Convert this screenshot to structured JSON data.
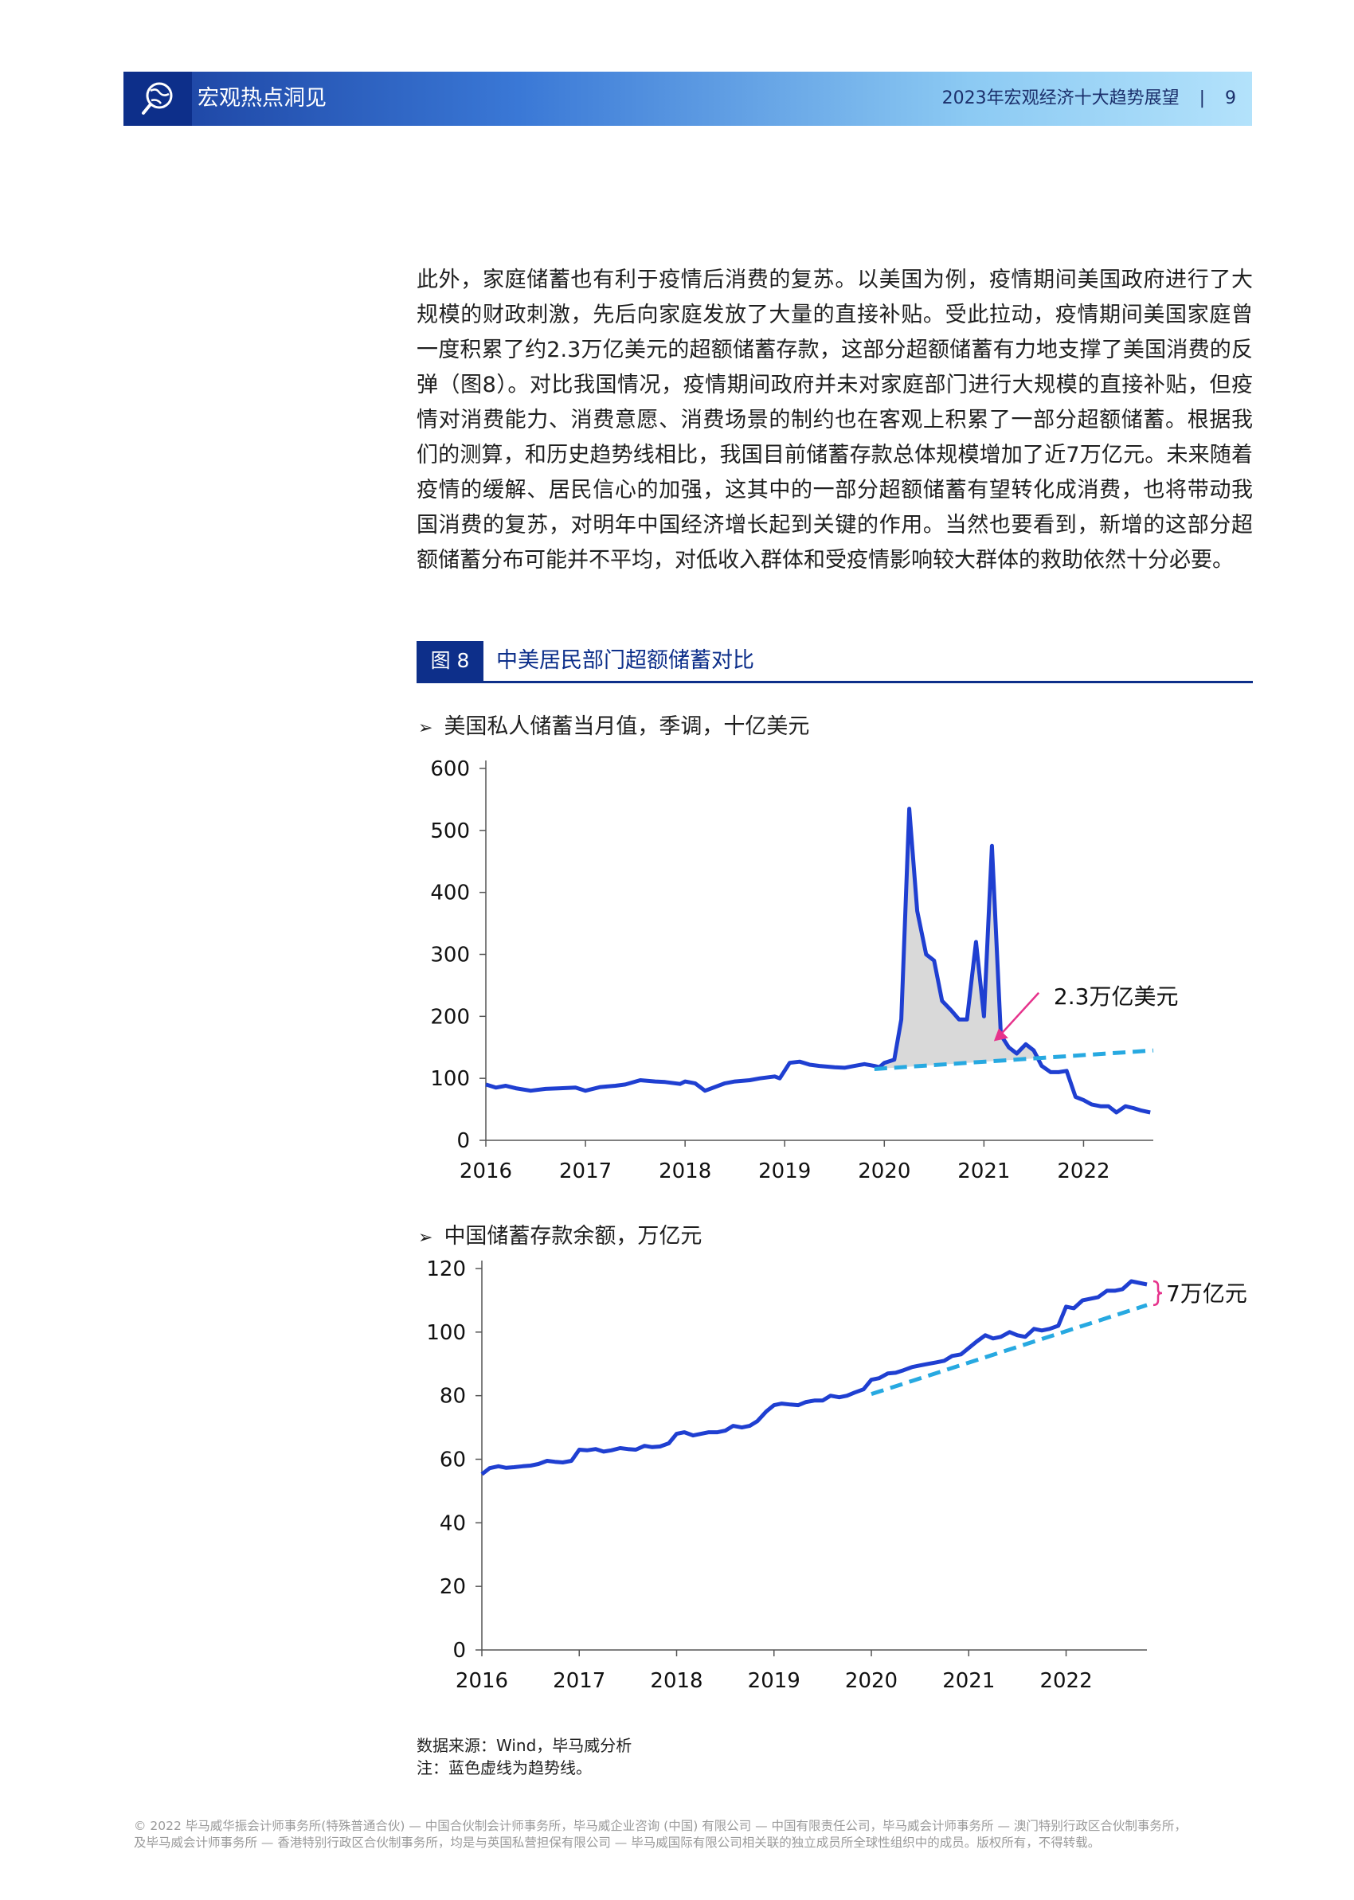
{
  "header": {
    "section_title": "宏观热点洞见",
    "report_title": "2023年宏观经济十大趋势展望",
    "separator": "|",
    "page_number": "9"
  },
  "body_paragraph": "此外，家庭储蓄也有利于疫情后消费的复苏。以美国为例，疫情期间美国政府进行了大规模的财政刺激，先后向家庭发放了大量的直接补贴。受此拉动，疫情期间美国家庭曾一度积累了约2.3万亿美元的超额储蓄存款，这部分超额储蓄有力地支撑了美国消费的反弹（图8）。对比我国情况，疫情期间政府并未对家庭部门进行大规模的直接补贴，但疫情对消费能力、消费意愿、消费场景的制约也在客观上积累了一部分超额储蓄。根据我们的测算，和历史趋势线相比，我国目前储蓄存款总体规模增加了近7万亿元。未来随着疫情的缓解、居民信心的加强，这其中的一部分超额储蓄有望转化成消费，也将带动我国消费的复苏，对明年中国经济增长起到关键的作用。当然也要看到，新增的这部分超额储蓄分布可能并不平均，对低收入群体和受疫情影响较大群体的救助依然十分必要。",
  "figure": {
    "number": "图 8",
    "title": "中美居民部门超额储蓄对比",
    "bullet": "➢"
  },
  "colors": {
    "series_line": "#1f3fd1",
    "trend_line": "#27a9e1",
    "fill": "#d9d9d9",
    "annotation": "#e6338c",
    "header_dark": "#0d2f8a"
  },
  "chart_data": [
    {
      "type": "line",
      "title": "美国私人储蓄当月值，季调，十亿美元",
      "xlabel": "",
      "ylabel": "",
      "xlim": [
        2016,
        2022.7
      ],
      "ylim": [
        0,
        600
      ],
      "yticks": [
        "0",
        "100",
        "200",
        "300",
        "400",
        "500",
        "600"
      ],
      "xticks": [
        "2016",
        "2017",
        "2018",
        "2019",
        "2020",
        "2021",
        "2022"
      ],
      "grid": false,
      "annotation": "2.3万亿美元",
      "series": [
        {
          "role": "actual",
          "x": [
            2016.0,
            2016.1,
            2016.2,
            2016.3,
            2016.45,
            2016.6,
            2016.75,
            2016.9,
            2017.0,
            2017.15,
            2017.3,
            2017.4,
            2017.55,
            2017.7,
            2017.8,
            2017.95,
            2018.0,
            2018.1,
            2018.2,
            2018.4,
            2018.5,
            2018.65,
            2018.75,
            2018.9,
            2018.95,
            2019.05,
            2019.15,
            2019.25,
            2019.35,
            2019.5,
            2019.6,
            2019.7,
            2019.8,
            2019.9,
            2019.95,
            2020.0,
            2020.1,
            2020.17,
            2020.25,
            2020.33,
            2020.42,
            2020.5,
            2020.58,
            2020.67,
            2020.75,
            2020.83,
            2020.92,
            2021.0,
            2021.08,
            2021.17,
            2021.25,
            2021.33,
            2021.42,
            2021.5,
            2021.58,
            2021.67,
            2021.75,
            2021.83,
            2021.92,
            2022.0,
            2022.08,
            2022.17,
            2022.25,
            2022.33,
            2022.42,
            2022.5,
            2022.58,
            2022.67
          ],
          "y": [
            90,
            85,
            88,
            84,
            80,
            83,
            84,
            85,
            80,
            86,
            88,
            90,
            97,
            95,
            94,
            91,
            95,
            92,
            80,
            92,
            95,
            97,
            100,
            103,
            100,
            125,
            127,
            122,
            120,
            118,
            117,
            120,
            123,
            120,
            118,
            125,
            130,
            195,
            535,
            370,
            300,
            290,
            225,
            210,
            195,
            195,
            320,
            200,
            475,
            170,
            150,
            140,
            155,
            145,
            120,
            110,
            110,
            112,
            70,
            65,
            58,
            55,
            55,
            45,
            55,
            52,
            48,
            45
          ]
        },
        {
          "role": "trend",
          "x": [
            2019.9,
            2022.7
          ],
          "y": [
            115,
            145
          ]
        }
      ]
    },
    {
      "type": "line",
      "title": "中国储蓄存款余额，万亿元",
      "xlabel": "",
      "ylabel": "",
      "xlim": [
        2016,
        2022.83
      ],
      "ylim": [
        0,
        120
      ],
      "yticks": [
        "0",
        "20",
        "40",
        "60",
        "80",
        "100",
        "120"
      ],
      "xticks": [
        "2016",
        "2017",
        "2018",
        "2019",
        "2020",
        "2021",
        "2022"
      ],
      "grid": false,
      "annotation": "7万亿元",
      "series": [
        {
          "role": "actual",
          "x": [
            2016.0,
            2016.08,
            2016.17,
            2016.25,
            2016.33,
            2016.42,
            2016.5,
            2016.58,
            2016.67,
            2016.75,
            2016.83,
            2016.92,
            2017.0,
            2017.08,
            2017.17,
            2017.25,
            2017.33,
            2017.42,
            2017.5,
            2017.58,
            2017.67,
            2017.75,
            2017.83,
            2017.92,
            2018.0,
            2018.08,
            2018.17,
            2018.25,
            2018.33,
            2018.42,
            2018.5,
            2018.58,
            2018.67,
            2018.75,
            2018.83,
            2018.92,
            2019.0,
            2019.08,
            2019.17,
            2019.25,
            2019.33,
            2019.42,
            2019.5,
            2019.58,
            2019.67,
            2019.75,
            2019.83,
            2019.92,
            2020.0,
            2020.08,
            2020.17,
            2020.25,
            2020.33,
            2020.42,
            2020.5,
            2020.58,
            2020.67,
            2020.75,
            2020.83,
            2020.92,
            2021.0,
            2021.08,
            2021.17,
            2021.25,
            2021.33,
            2021.42,
            2021.5,
            2021.58,
            2021.67,
            2021.75,
            2021.83,
            2021.92,
            2022.0,
            2022.08,
            2022.17,
            2022.25,
            2022.33,
            2022.42,
            2022.5,
            2022.58,
            2022.67,
            2022.75,
            2022.83
          ],
          "y": [
            55.3,
            57.2,
            57.8,
            57.3,
            57.5,
            57.8,
            58.0,
            58.5,
            59.5,
            59.2,
            59.0,
            59.5,
            63.0,
            62.8,
            63.2,
            62.4,
            62.8,
            63.5,
            63.2,
            63.0,
            64.2,
            63.8,
            64.0,
            65.0,
            68.0,
            68.5,
            67.5,
            68.0,
            68.5,
            68.5,
            69.0,
            70.5,
            70.0,
            70.5,
            72.0,
            75.0,
            77.0,
            77.5,
            77.2,
            77.0,
            78.0,
            78.5,
            78.5,
            80.0,
            79.5,
            80.0,
            81.0,
            82.0,
            85.0,
            85.5,
            87.0,
            87.2,
            88.0,
            89.0,
            89.5,
            90.0,
            90.5,
            91.0,
            92.5,
            93.0,
            95.0,
            97.0,
            99.0,
            98.0,
            98.5,
            100.0,
            99.0,
            98.5,
            101.0,
            100.5,
            101.0,
            102.0,
            108.0,
            107.5,
            110.0,
            110.5,
            111.0,
            113.0,
            113.0,
            113.5,
            116.0,
            115.5,
            115.0
          ]
        },
        {
          "role": "trend",
          "x": [
            2020.0,
            2022.83
          ],
          "y": [
            80.5,
            108.5
          ]
        }
      ]
    }
  ],
  "source_note": {
    "source": "数据来源：Wind，毕马威分析",
    "note": "注：蓝色虚线为趋势线。"
  },
  "footer": {
    "line1": "© 2022 毕马威华振会计师事务所(特殊普通合伙) — 中国合伙制会计师事务所，毕马威企业咨询 (中国) 有限公司 — 中国有限责任公司，毕马威会计师事务所 — 澳门特别行政区合伙制事务所，",
    "line2": "及毕马威会计师事务所 — 香港特别行政区合伙制事务所，均是与英国私营担保有限公司 — 毕马威国际有限公司相关联的独立成员所全球性组织中的成员。版权所有，不得转载。"
  }
}
